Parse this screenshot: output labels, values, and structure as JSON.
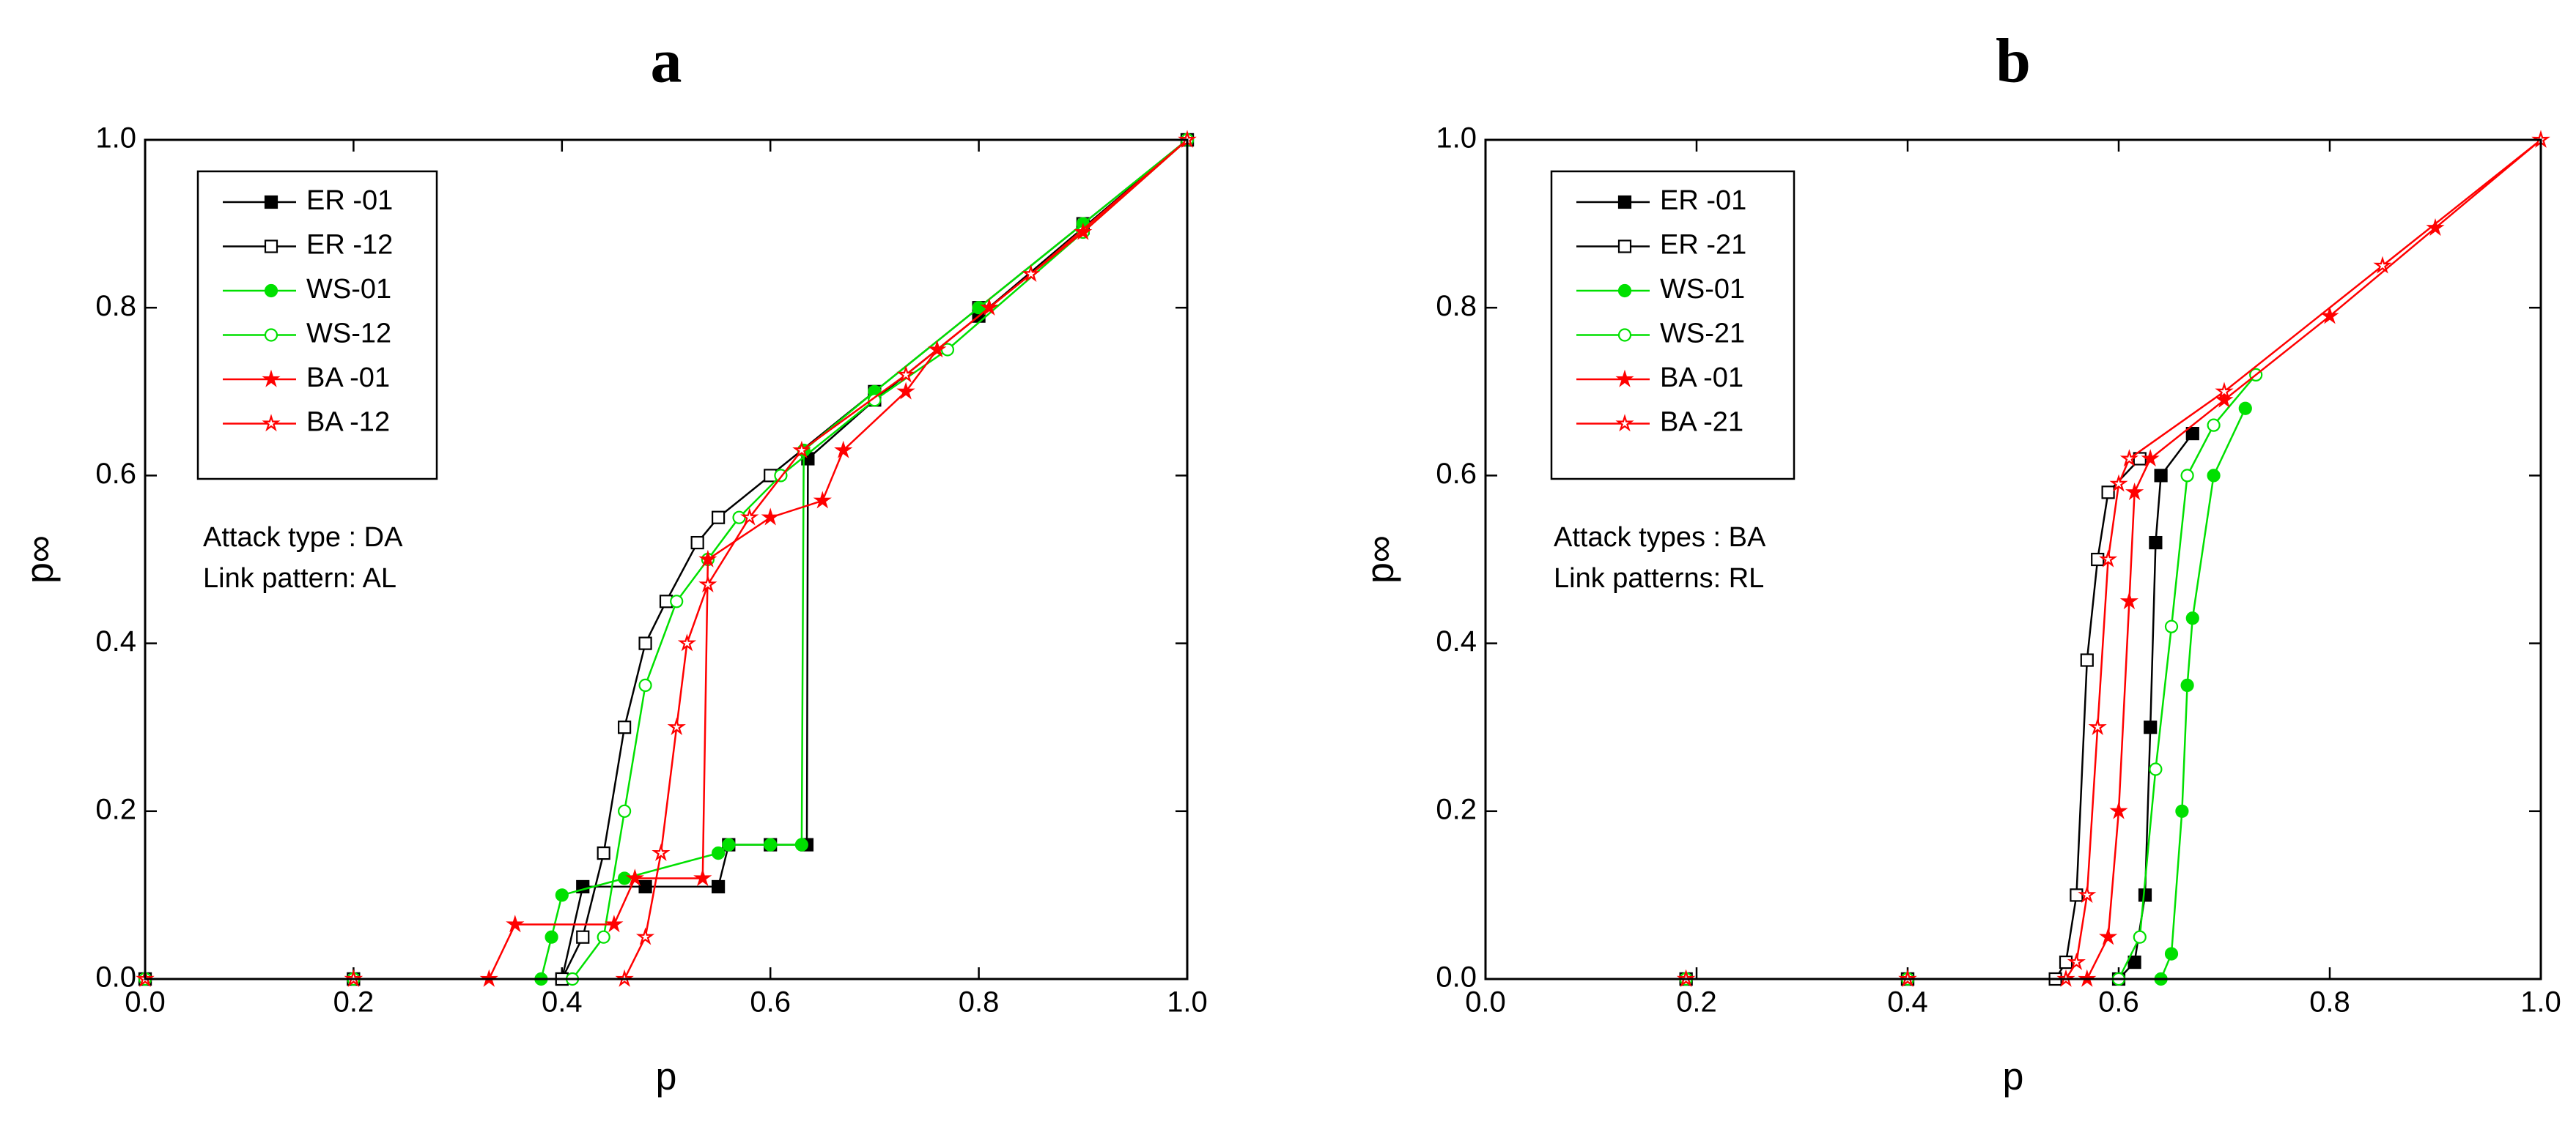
{
  "chart_data": [
    {
      "type": "line",
      "title": "a",
      "xlabel": "p",
      "ylabel": "p∞",
      "annotations": [
        "Attack type : DA",
        "Link pattern: AL"
      ],
      "xlim": [
        0,
        1
      ],
      "ylim": [
        0,
        1
      ],
      "xticks": [
        {
          "value": 0,
          "label": "0.0"
        },
        0.2,
        0.4,
        0.6,
        0.8,
        {
          "value": 1,
          "label": "1.0"
        }
      ],
      "yticks": [
        {
          "value": 0,
          "label": "0.0"
        },
        0.2,
        0.4,
        0.6,
        0.8,
        {
          "value": 1,
          "label": "1.0"
        }
      ],
      "series": [
        {
          "name": "ER -01",
          "color": "#000000",
          "marker": "square",
          "filled": true,
          "x": [
            0,
            0.2,
            0.4,
            0.42,
            0.48,
            0.55,
            0.56,
            0.6,
            0.635,
            0.636,
            0.7,
            0.8,
            0.9,
            1.0
          ],
          "values": [
            0,
            0,
            0,
            0.11,
            0.11,
            0.11,
            0.16,
            0.16,
            0.16,
            0.62,
            0.69,
            0.79,
            0.895,
            1.0
          ]
        },
        {
          "name": "ER -12",
          "color": "#000000",
          "marker": "square",
          "filled": false,
          "x": [
            0,
            0.2,
            0.4,
            0.42,
            0.44,
            0.46,
            0.48,
            0.5,
            0.53,
            0.55,
            0.6,
            0.7,
            0.8,
            0.9,
            1.0
          ],
          "values": [
            0,
            0,
            0,
            0.05,
            0.15,
            0.3,
            0.4,
            0.45,
            0.52,
            0.55,
            0.6,
            0.7,
            0.8,
            0.9,
            1.0
          ]
        },
        {
          "name": "WS-01",
          "color": "#00e000",
          "marker": "circle",
          "filled": true,
          "x": [
            0,
            0.2,
            0.38,
            0.39,
            0.4,
            0.46,
            0.55,
            0.56,
            0.6,
            0.63,
            0.632,
            0.7,
            0.8,
            0.9,
            1.0
          ],
          "values": [
            0,
            0,
            0,
            0.05,
            0.1,
            0.12,
            0.15,
            0.16,
            0.16,
            0.16,
            0.63,
            0.7,
            0.8,
            0.9,
            1.0
          ]
        },
        {
          "name": "WS-12",
          "color": "#00e000",
          "marker": "circle",
          "filled": false,
          "x": [
            0,
            0.2,
            0.41,
            0.44,
            0.46,
            0.48,
            0.51,
            0.54,
            0.57,
            0.61,
            0.7,
            0.77,
            0.9,
            1.0
          ],
          "values": [
            0,
            0,
            0,
            0.05,
            0.2,
            0.35,
            0.45,
            0.5,
            0.55,
            0.6,
            0.69,
            0.75,
            0.89,
            1.0
          ]
        },
        {
          "name": "BA -01",
          "color": "#ff0000",
          "marker": "star",
          "filled": true,
          "x": [
            0,
            0.2,
            0.33,
            0.355,
            0.45,
            0.47,
            0.535,
            0.54,
            0.6,
            0.65,
            0.67,
            0.73,
            0.76,
            0.81,
            0.9,
            1.0
          ],
          "values": [
            0,
            0,
            0,
            0.065,
            0.065,
            0.12,
            0.12,
            0.5,
            0.55,
            0.57,
            0.63,
            0.7,
            0.75,
            0.8,
            0.89,
            1.0
          ]
        },
        {
          "name": "BA -12",
          "color": "#ff0000",
          "marker": "star",
          "filled": false,
          "x": [
            0,
            0.2,
            0.46,
            0.48,
            0.495,
            0.51,
            0.52,
            0.54,
            0.58,
            0.63,
            0.73,
            0.85,
            1.0
          ],
          "values": [
            0,
            0,
            0,
            0.05,
            0.15,
            0.3,
            0.4,
            0.47,
            0.55,
            0.63,
            0.72,
            0.84,
            1.0
          ]
        }
      ]
    },
    {
      "type": "line",
      "title": "b",
      "xlabel": "p",
      "ylabel": "p∞",
      "annotations": [
        "Attack types : BA",
        "Link patterns: RL"
      ],
      "xlim": [
        0,
        1
      ],
      "ylim": [
        0,
        1
      ],
      "xticks": [
        {
          "value": 0,
          "label": "0.0"
        },
        0.2,
        0.4,
        0.6,
        0.8,
        {
          "value": 1,
          "label": "1.0"
        }
      ],
      "yticks": [
        {
          "value": 0,
          "label": "0.0"
        },
        0.2,
        0.4,
        0.6,
        0.8,
        {
          "value": 1,
          "label": "1.0"
        }
      ],
      "series": [
        {
          "name": "ER -01",
          "color": "#000000",
          "marker": "square",
          "filled": true,
          "x": [
            0.19,
            0.4,
            0.6,
            0.615,
            0.625,
            0.63,
            0.635,
            0.64,
            0.67
          ],
          "values": [
            0,
            0,
            0,
            0.02,
            0.1,
            0.3,
            0.52,
            0.6,
            0.65
          ]
        },
        {
          "name": "ER -21",
          "color": "#000000",
          "marker": "square",
          "filled": false,
          "x": [
            0.19,
            0.4,
            0.54,
            0.55,
            0.56,
            0.57,
            0.58,
            0.59,
            0.62
          ],
          "values": [
            0,
            0,
            0,
            0.02,
            0.1,
            0.38,
            0.5,
            0.58,
            0.62
          ]
        },
        {
          "name": "WS-01",
          "color": "#00e000",
          "marker": "circle",
          "filled": true,
          "x": [
            0.19,
            0.4,
            0.64,
            0.65,
            0.66,
            0.665,
            0.67,
            0.69,
            0.72
          ],
          "values": [
            0,
            0,
            0,
            0.03,
            0.2,
            0.35,
            0.43,
            0.6,
            0.68
          ]
        },
        {
          "name": "WS-21",
          "color": "#00e000",
          "marker": "circle",
          "filled": false,
          "x": [
            0.19,
            0.4,
            0.6,
            0.62,
            0.635,
            0.65,
            0.665,
            0.69,
            0.73
          ],
          "values": [
            0,
            0,
            0,
            0.05,
            0.25,
            0.42,
            0.6,
            0.66,
            0.72
          ]
        },
        {
          "name": "BA -01",
          "color": "#ff0000",
          "marker": "star",
          "filled": true,
          "x": [
            0.19,
            0.4,
            0.57,
            0.59,
            0.6,
            0.61,
            0.615,
            0.63,
            0.7,
            0.8,
            0.9,
            1.0
          ],
          "values": [
            0,
            0,
            0,
            0.05,
            0.2,
            0.45,
            0.58,
            0.62,
            0.69,
            0.79,
            0.895,
            1.0
          ]
        },
        {
          "name": "BA -21",
          "color": "#ff0000",
          "marker": "star",
          "filled": false,
          "x": [
            0.19,
            0.4,
            0.55,
            0.56,
            0.57,
            0.58,
            0.59,
            0.6,
            0.61,
            0.7,
            0.85,
            1.0
          ],
          "values": [
            0,
            0,
            0,
            0.02,
            0.1,
            0.3,
            0.5,
            0.59,
            0.62,
            0.7,
            0.85,
            1.0
          ]
        }
      ]
    }
  ]
}
